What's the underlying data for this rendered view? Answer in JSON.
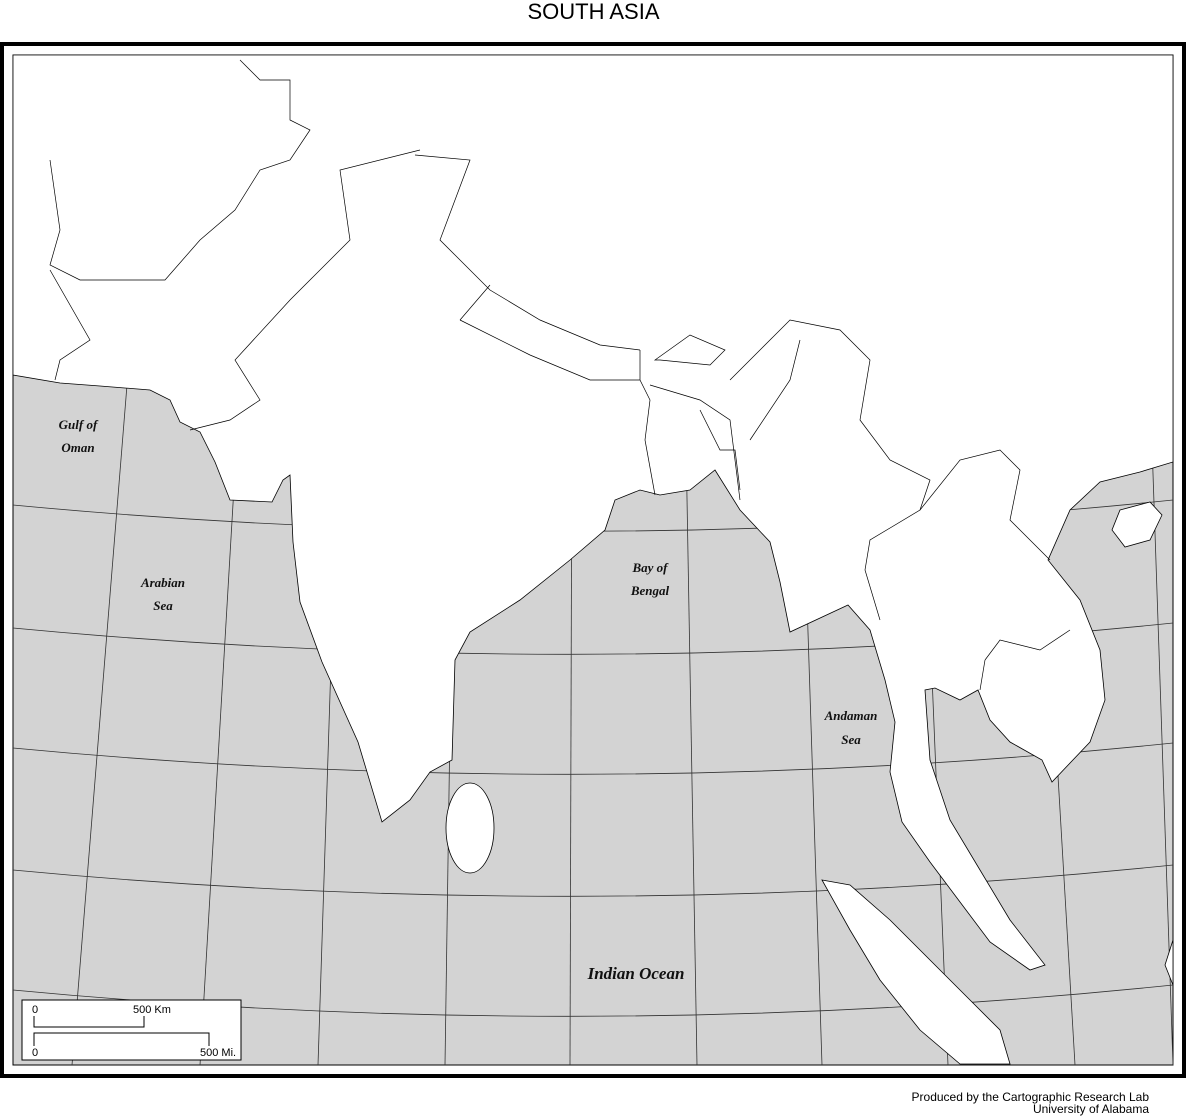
{
  "title": "SOUTH ASIA",
  "colors": {
    "land": "#ffffff",
    "water": "#d3d3d3",
    "border": "#000000"
  },
  "labels": {
    "gulf_of_oman": [
      "Gulf of",
      "Oman"
    ],
    "arabian_sea": [
      "Arabian",
      "Sea"
    ],
    "bay_of_bengal": [
      "Bay of",
      "Bengal"
    ],
    "andaman_sea": [
      "Andaman",
      "Sea"
    ],
    "indian_ocean": "Indian Ocean"
  },
  "scale": {
    "km_zero": "0",
    "km_label": "500 Km",
    "mi_zero": "0",
    "mi_label": "500 Mi."
  },
  "credits": {
    "line1": "Produced by the Cartographic Research Lab",
    "line2": "University of Alabama"
  }
}
